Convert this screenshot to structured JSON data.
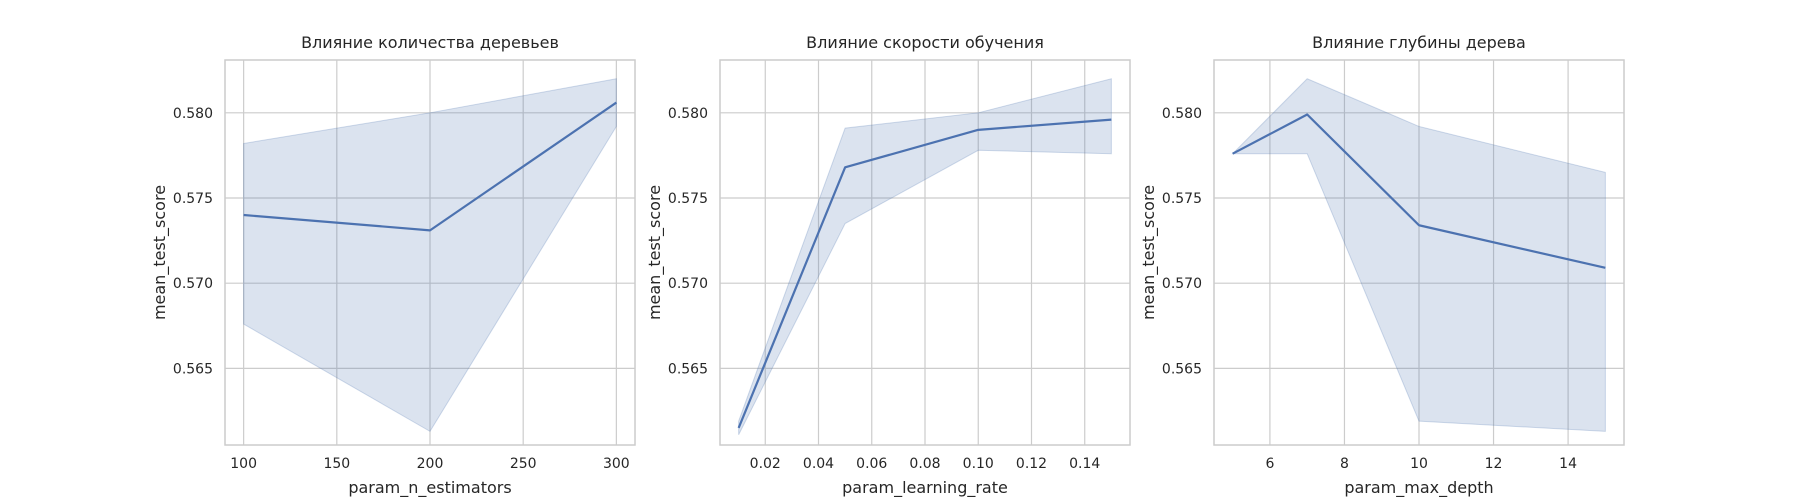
{
  "chart_data": [
    {
      "type": "line",
      "title": "Влияние количества деревьев",
      "xlabel": "param_n_estimators",
      "ylabel": "mean_test_score",
      "xlim": [
        90,
        310
      ],
      "ylim": [
        0.5605,
        0.5831
      ],
      "xticks": [
        100,
        150,
        200,
        250,
        300
      ],
      "xtick_labels": [
        "100",
        "150",
        "200",
        "250",
        "300"
      ],
      "yticks": [
        0.565,
        0.57,
        0.575,
        0.58
      ],
      "ytick_labels": [
        "0.565",
        "0.570",
        "0.575",
        "0.580"
      ],
      "grid": true,
      "series": [
        {
          "x": [
            100,
            200,
            300
          ],
          "y": [
            0.574,
            0.5731,
            0.5806
          ],
          "ci_lower": [
            0.5676,
            0.5613,
            0.5792
          ],
          "ci_upper": [
            0.5782,
            0.58,
            0.582
          ]
        }
      ]
    },
    {
      "type": "line",
      "title": "Влияние скорости обучения",
      "xlabel": "param_learning_rate",
      "ylabel": "mean_test_score",
      "xlim": [
        0.003,
        0.157
      ],
      "ylim": [
        0.5605,
        0.5831
      ],
      "xticks": [
        0.02,
        0.04,
        0.06,
        0.08,
        0.1,
        0.12,
        0.14
      ],
      "xtick_labels": [
        "0.02",
        "0.04",
        "0.06",
        "0.08",
        "0.10",
        "0.12",
        "0.14"
      ],
      "yticks": [
        0.565,
        0.57,
        0.575,
        0.58
      ],
      "ytick_labels": [
        "0.565",
        "0.570",
        "0.575",
        "0.580"
      ],
      "grid": true,
      "series": [
        {
          "x": [
            0.01,
            0.05,
            0.1,
            0.15
          ],
          "y": [
            0.5615,
            0.5768,
            0.579,
            0.5796
          ],
          "ci_lower": [
            0.5611,
            0.5735,
            0.5778,
            0.5776
          ],
          "ci_upper": [
            0.5619,
            0.5791,
            0.58,
            0.582
          ]
        }
      ]
    },
    {
      "type": "line",
      "title": "Влияние глубины дерева",
      "xlabel": "param_max_depth",
      "ylabel": "mean_test_score",
      "xlim": [
        4.5,
        15.5
      ],
      "ylim": [
        0.5605,
        0.5831
      ],
      "xticks": [
        6,
        8,
        10,
        12,
        14
      ],
      "xtick_labels": [
        "6",
        "8",
        "10",
        "12",
        "14"
      ],
      "yticks": [
        0.565,
        0.57,
        0.575,
        0.58
      ],
      "ytick_labels": [
        "0.565",
        "0.570",
        "0.575",
        "0.580"
      ],
      "grid": true,
      "series": [
        {
          "x": [
            5,
            7,
            10,
            15
          ],
          "y": [
            0.5776,
            0.5799,
            0.5734,
            0.5709
          ],
          "ci_lower": [
            0.5776,
            0.5776,
            0.5619,
            0.5613
          ],
          "ci_upper": [
            0.5776,
            0.582,
            0.5792,
            0.5765
          ]
        }
      ]
    }
  ],
  "colors": {
    "line": "#4c72b0",
    "band": "#4c72b0",
    "grid": "#cccccc",
    "frame": "#cccccc",
    "text": "#262626"
  }
}
